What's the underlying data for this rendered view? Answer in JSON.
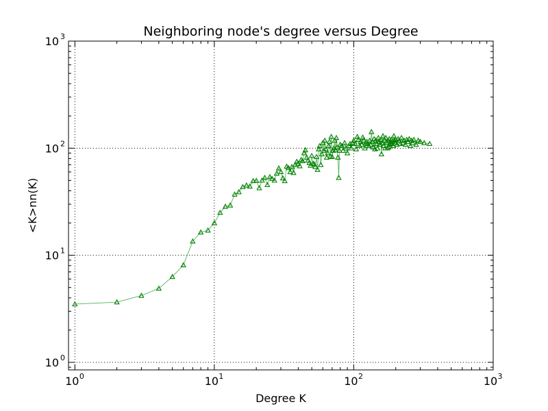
{
  "chart_data": {
    "type": "line",
    "title": "Neighboring node's degree versus Degree",
    "xlabel": "Degree K",
    "ylabel": "<K>nn(K)",
    "xscale": "log",
    "yscale": "log",
    "xlim": [
      0.9,
      1000
    ],
    "ylim": [
      0.85,
      1000
    ],
    "grid": true,
    "x_ticks": [
      {
        "value": 1,
        "label": "10",
        "exp": "0"
      },
      {
        "value": 10,
        "label": "10",
        "exp": "1"
      },
      {
        "value": 100,
        "label": "10",
        "exp": "2"
      },
      {
        "value": 1000,
        "label": "10",
        "exp": "3"
      }
    ],
    "y_ticks": [
      {
        "value": 1,
        "label": "10",
        "exp": "0"
      },
      {
        "value": 10,
        "label": "10",
        "exp": "1"
      },
      {
        "value": 100,
        "label": "10",
        "exp": "2"
      },
      {
        "value": 1000,
        "label": "10",
        "exp": "3"
      }
    ],
    "series": [
      {
        "marker": "triangle-up",
        "color": "#008000",
        "line_color": "#4caf50",
        "points": [
          [
            1,
            3.5
          ],
          [
            2,
            3.65
          ],
          [
            3,
            4.2
          ],
          [
            4,
            4.9
          ],
          [
            5,
            6.3
          ],
          [
            6,
            8.1
          ],
          [
            7,
            13.5
          ],
          [
            8,
            16.4
          ],
          [
            9,
            17.1
          ],
          [
            10,
            20
          ],
          [
            11,
            25
          ],
          [
            12,
            28.5
          ],
          [
            13,
            29.3
          ],
          [
            14,
            37
          ],
          [
            15,
            39
          ],
          [
            16,
            43.5
          ],
          [
            17,
            45
          ],
          [
            18,
            44
          ],
          [
            19,
            49.5
          ],
          [
            20,
            49.8
          ],
          [
            21,
            42.5
          ],
          [
            22,
            50
          ],
          [
            23,
            53
          ],
          [
            24,
            45.5
          ],
          [
            25,
            54
          ],
          [
            26,
            51.8
          ],
          [
            27,
            50
          ],
          [
            28,
            58
          ],
          [
            29,
            65
          ],
          [
            30,
            60
          ],
          [
            31,
            52.5
          ],
          [
            32,
            49.5
          ],
          [
            33,
            67.5
          ],
          [
            34,
            65.5
          ],
          [
            35,
            60
          ],
          [
            36,
            67
          ],
          [
            37,
            59
          ],
          [
            38,
            70
          ],
          [
            39,
            75
          ],
          [
            40,
            72
          ],
          [
            41,
            68
          ],
          [
            42,
            78
          ],
          [
            43,
            76
          ],
          [
            44,
            90
          ],
          [
            45,
            96
          ],
          [
            46,
            82
          ],
          [
            47,
            77
          ],
          [
            48,
            73
          ],
          [
            49,
            69
          ],
          [
            50,
            85
          ],
          [
            51,
            72
          ],
          [
            52,
            71
          ],
          [
            53,
            67
          ],
          [
            54,
            83
          ],
          [
            55,
            63
          ],
          [
            56,
            98
          ],
          [
            57,
            105
          ],
          [
            58,
            70
          ],
          [
            59,
            88
          ],
          [
            60,
            112
          ],
          [
            61,
            95
          ],
          [
            62,
            118
          ],
          [
            63,
            98
          ],
          [
            64,
            82
          ],
          [
            65,
            90
          ],
          [
            66,
            105
          ],
          [
            67,
            115
          ],
          [
            68,
            84
          ],
          [
            69,
            128
          ],
          [
            70,
            83
          ],
          [
            71,
            95
          ],
          [
            72,
            100
          ],
          [
            73,
            118
          ],
          [
            74,
            96
          ],
          [
            75,
            125
          ],
          [
            76,
            102
          ],
          [
            77,
            82
          ],
          [
            78,
            53
          ],
          [
            79,
            95
          ],
          [
            80,
            108
          ],
          [
            82,
            105
          ],
          [
            84,
            95
          ],
          [
            86,
            112
          ],
          [
            88,
            100
          ],
          [
            90,
            90
          ],
          [
            92,
            105
          ],
          [
            94,
            110
          ],
          [
            96,
            100
          ],
          [
            98,
            112
          ],
          [
            100,
            118
          ],
          [
            102,
            110
          ],
          [
            104,
            98
          ],
          [
            106,
            128
          ],
          [
            108,
            120
          ],
          [
            110,
            105
          ],
          [
            112,
            115
          ],
          [
            114,
            108
          ],
          [
            116,
            126
          ],
          [
            118,
            118
          ],
          [
            120,
            100
          ],
          [
            122,
            112
          ],
          [
            124,
            115
          ],
          [
            126,
            110
          ],
          [
            128,
            105
          ],
          [
            130,
            118
          ],
          [
            132,
            108
          ],
          [
            134,
            142
          ],
          [
            136,
            115
          ],
          [
            138,
            102
          ],
          [
            140,
            122
          ],
          [
            142,
            98
          ],
          [
            144,
            118
          ],
          [
            146,
            110
          ],
          [
            148,
            100
          ],
          [
            150,
            125
          ],
          [
            152,
            115
          ],
          [
            154,
            108
          ],
          [
            156,
            120
          ],
          [
            158,
            88
          ],
          [
            160,
            112
          ],
          [
            162,
            130
          ],
          [
            164,
            105
          ],
          [
            166,
            118
          ],
          [
            168,
            100
          ],
          [
            170,
            125
          ],
          [
            172,
            113
          ],
          [
            174,
            100
          ],
          [
            176,
            118
          ],
          [
            178,
            102
          ],
          [
            180,
            122
          ],
          [
            182,
            108
          ],
          [
            184,
            112
          ],
          [
            186,
            120
          ],
          [
            188,
            110
          ],
          [
            190,
            115
          ],
          [
            192,
            105
          ],
          [
            194,
            130
          ],
          [
            196,
            118
          ],
          [
            198,
            112
          ],
          [
            200,
            120
          ],
          [
            204,
            108
          ],
          [
            208,
            122
          ],
          [
            212,
            118
          ],
          [
            216,
            110
          ],
          [
            220,
            125
          ],
          [
            225,
            112
          ],
          [
            230,
            118
          ],
          [
            235,
            108
          ],
          [
            240,
            120
          ],
          [
            245,
            115
          ],
          [
            250,
            122
          ],
          [
            255,
            105
          ],
          [
            260,
            118
          ],
          [
            265,
            112
          ],
          [
            270,
            120
          ],
          [
            280,
            108
          ],
          [
            290,
            118
          ],
          [
            300,
            115
          ],
          [
            320,
            112
          ],
          [
            350,
            110
          ]
        ]
      }
    ]
  }
}
